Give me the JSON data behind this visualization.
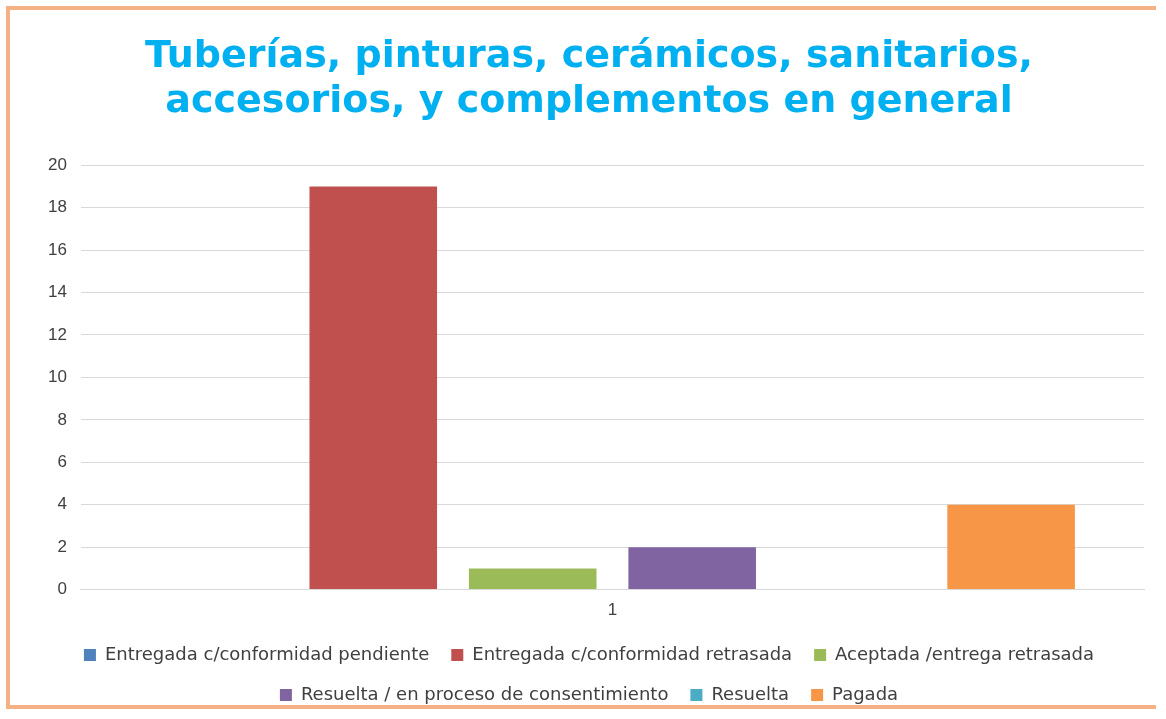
{
  "chart_data": {
    "type": "bar",
    "title": [
      "Tuberías, pinturas, cerámicos, sanitarios,",
      "accesorios, y complementos en general"
    ],
    "categories": [
      "1"
    ],
    "series": [
      {
        "name": "Entregada c/conformidad pendiente",
        "color": "#4f81bd",
        "values": [
          0
        ]
      },
      {
        "name": "Entregada c/conformidad retrasada",
        "color": "#c0504d",
        "values": [
          19
        ]
      },
      {
        "name": "Aceptada /entrega retrasada",
        "color": "#9bbb59",
        "values": [
          1
        ]
      },
      {
        "name": "Resuelta / en proceso de consentimiento",
        "color": "#8064a2",
        "values": [
          2
        ]
      },
      {
        "name": "Resuelta",
        "color": "#4bacc6",
        "values": [
          0
        ]
      },
      {
        "name": "Pagada",
        "color": "#f79646",
        "values": [
          4
        ]
      }
    ],
    "ylim": [
      0,
      20
    ],
    "yticks": [
      0,
      2,
      4,
      6,
      8,
      10,
      12,
      14,
      16,
      18,
      20
    ],
    "grid": "y",
    "legend": "bottom"
  }
}
